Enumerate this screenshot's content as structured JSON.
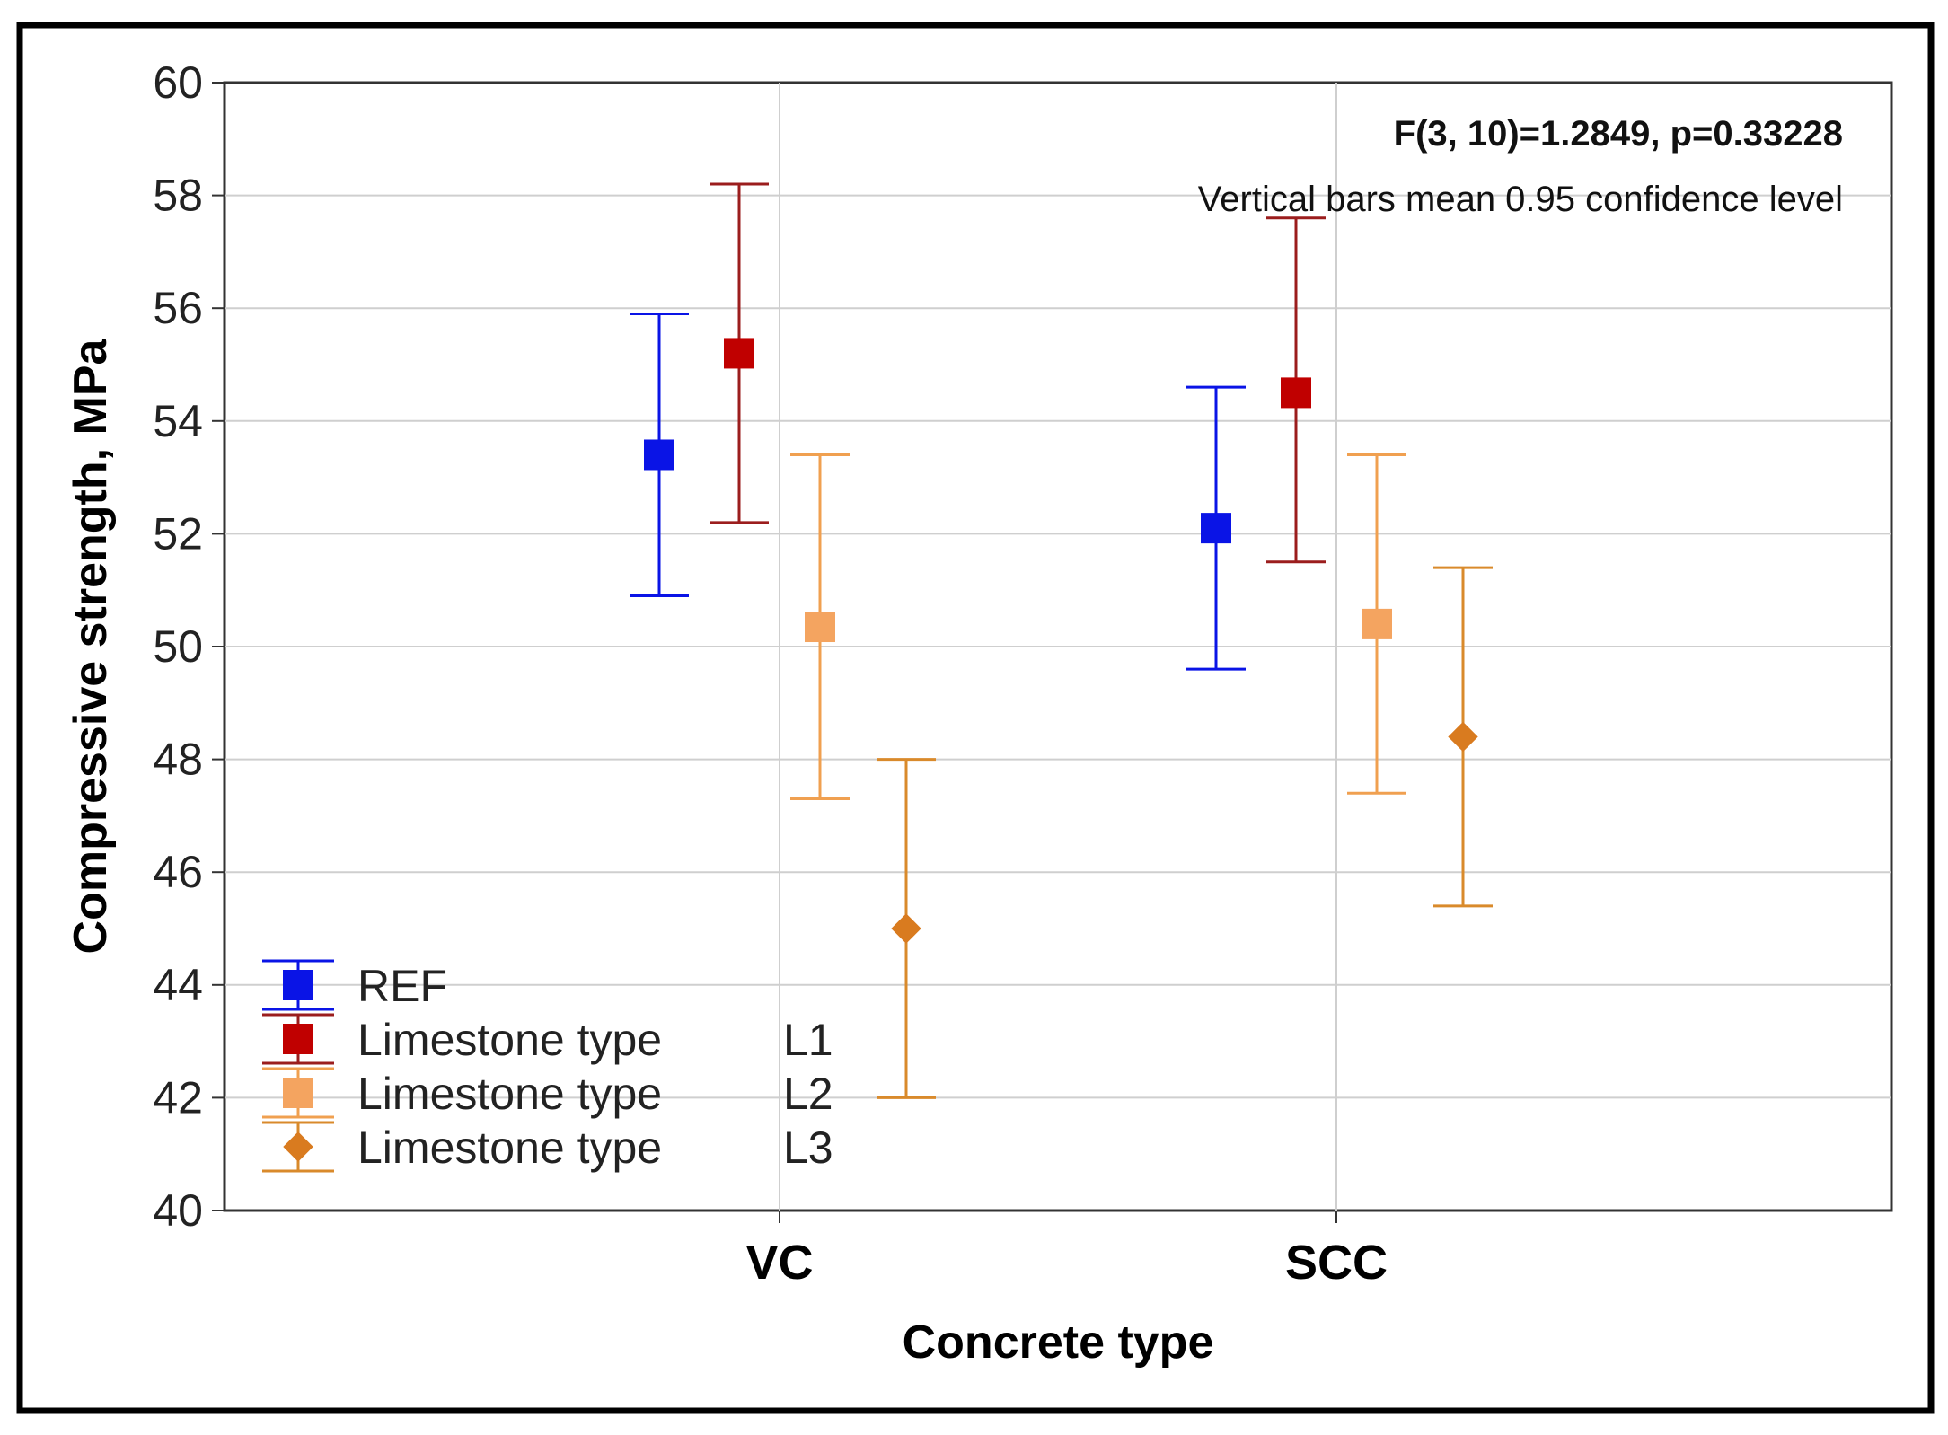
{
  "chart_data": {
    "type": "scatter",
    "subtype": "means-with-error-bars",
    "title": "",
    "xlabel": "Concrete type",
    "ylabel": "Compressive strength, MPa",
    "categories": [
      "VC",
      "SCC"
    ],
    "ylim": [
      40,
      60
    ],
    "yticks": [
      "40",
      "42",
      "44",
      "46",
      "48",
      "50",
      "52",
      "54",
      "56",
      "58",
      "60"
    ],
    "grid": true,
    "legend_position": "bottom-left",
    "series": [
      {
        "name": "REF",
        "legend_label": "REF",
        "legend_suffix": "",
        "color": "#0a14e6",
        "marker": "square",
        "values": [
          53.4,
          52.1
        ],
        "lower": [
          50.9,
          49.6
        ],
        "upper": [
          55.9,
          54.6
        ]
      },
      {
        "name": "Limestone type L1",
        "legend_label": "Limestone type",
        "legend_suffix": "L1",
        "color": "#c00000",
        "line_color": "#9b1d1d",
        "marker": "square",
        "values": [
          55.2,
          54.5
        ],
        "lower": [
          52.2,
          51.5
        ],
        "upper": [
          58.2,
          57.6
        ]
      },
      {
        "name": "Limestone type L2",
        "legend_label": "Limestone type",
        "legend_suffix": "L2",
        "color": "#f4a460",
        "line_color": "#f0a050",
        "marker": "square",
        "values": [
          50.35,
          50.4
        ],
        "lower": [
          47.3,
          47.4
        ],
        "upper": [
          53.4,
          53.4
        ]
      },
      {
        "name": "Limestone type L3",
        "legend_label": "Limestone type",
        "legend_suffix": "L3",
        "color": "#d97b1f",
        "line_color": "#d98a2b",
        "marker": "diamond",
        "values": [
          45.0,
          48.4
        ],
        "lower": [
          42.0,
          45.4
        ],
        "upper": [
          48.0,
          51.4
        ]
      }
    ],
    "annotations": {
      "stat": "F(3, 10)=1.2849, p=0.33228",
      "note": "Vertical bars mean 0.95 confidence level"
    }
  }
}
